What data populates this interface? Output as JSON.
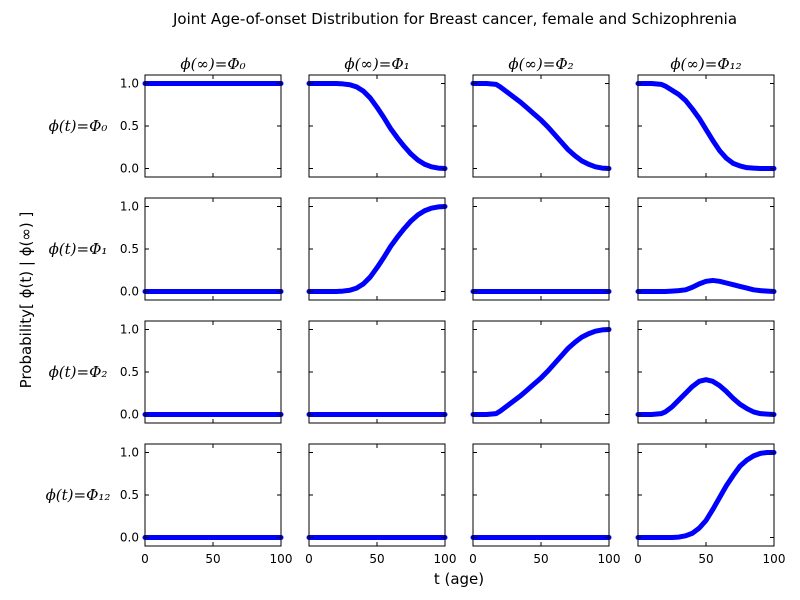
{
  "chart_data": {
    "type": "line",
    "title": "Joint Age-of-onset Distribution for Breast cancer, female and Schizophrenia",
    "xlabel": "t (age)",
    "ylabel": "Probability[ ϕ(t) | ϕ(∞) ]",
    "col_labels": [
      "ϕ(∞)=Φ₀",
      "ϕ(∞)=Φ₁",
      "ϕ(∞)=Φ₂",
      "ϕ(∞)=Φ₁₂"
    ],
    "row_labels": [
      "ϕ(t)=Φ₀",
      "ϕ(t)=Φ₁",
      "ϕ(t)=Φ₂",
      "ϕ(t)=Φ₁₂"
    ],
    "xlim": [
      0,
      100
    ],
    "ylim": [
      -0.1,
      1.1
    ],
    "xticks": [
      0,
      50,
      100
    ],
    "yticks": [
      0.0,
      0.5,
      1.0
    ],
    "xtick_labels": [
      "0",
      "50",
      "100"
    ],
    "ytick_labels": [
      "0.0",
      "0.5",
      "1.0"
    ],
    "line_color": "#0000ff",
    "x": [
      0,
      10,
      17,
      20,
      25,
      30,
      35,
      40,
      45,
      50,
      55,
      60,
      65,
      70,
      75,
      80,
      85,
      90,
      95,
      100
    ],
    "panels": [
      [
        {
          "y": [
            1,
            1,
            1,
            1,
            1,
            1,
            1,
            1,
            1,
            1,
            1,
            1,
            1,
            1,
            1,
            1,
            1,
            1,
            1,
            1
          ]
        },
        {
          "y": [
            1,
            1,
            1,
            1,
            0.995,
            0.985,
            0.96,
            0.91,
            0.83,
            0.72,
            0.6,
            0.47,
            0.36,
            0.26,
            0.17,
            0.1,
            0.05,
            0.02,
            0.005,
            0
          ]
        },
        {
          "y": [
            1,
            1,
            0.99,
            0.96,
            0.9,
            0.84,
            0.78,
            0.71,
            0.64,
            0.57,
            0.49,
            0.4,
            0.31,
            0.22,
            0.15,
            0.09,
            0.05,
            0.02,
            0.005,
            0
          ]
        },
        {
          "y": [
            1,
            1,
            0.99,
            0.97,
            0.92,
            0.87,
            0.8,
            0.7,
            0.59,
            0.46,
            0.33,
            0.21,
            0.12,
            0.06,
            0.03,
            0.01,
            0.005,
            0,
            0,
            0
          ]
        }
      ],
      [
        {
          "y": [
            0,
            0,
            0,
            0,
            0,
            0,
            0,
            0,
            0,
            0,
            0,
            0,
            0,
            0,
            0,
            0,
            0,
            0,
            0,
            0
          ]
        },
        {
          "y": [
            0,
            0,
            0,
            0,
            0.005,
            0.015,
            0.04,
            0.09,
            0.17,
            0.28,
            0.4,
            0.53,
            0.64,
            0.74,
            0.83,
            0.9,
            0.95,
            0.98,
            0.995,
            1
          ]
        },
        {
          "y": [
            0,
            0,
            0,
            0,
            0,
            0,
            0,
            0,
            0,
            0,
            0,
            0,
            0,
            0,
            0,
            0,
            0,
            0,
            0,
            0
          ]
        },
        {
          "y": [
            0,
            0,
            0,
            0,
            0.005,
            0.01,
            0.02,
            0.05,
            0.09,
            0.12,
            0.13,
            0.12,
            0.1,
            0.08,
            0.06,
            0.04,
            0.02,
            0.01,
            0.005,
            0
          ]
        }
      ],
      [
        {
          "y": [
            0,
            0,
            0,
            0,
            0,
            0,
            0,
            0,
            0,
            0,
            0,
            0,
            0,
            0,
            0,
            0,
            0,
            0,
            0,
            0
          ]
        },
        {
          "y": [
            0,
            0,
            0,
            0,
            0,
            0,
            0,
            0,
            0,
            0,
            0,
            0,
            0,
            0,
            0,
            0,
            0,
            0,
            0,
            0
          ]
        },
        {
          "y": [
            0,
            0,
            0.01,
            0.04,
            0.1,
            0.16,
            0.22,
            0.29,
            0.36,
            0.43,
            0.51,
            0.6,
            0.69,
            0.78,
            0.85,
            0.91,
            0.95,
            0.98,
            0.995,
            1
          ]
        },
        {
          "y": [
            0,
            0,
            0.01,
            0.03,
            0.09,
            0.17,
            0.25,
            0.33,
            0.39,
            0.41,
            0.39,
            0.34,
            0.27,
            0.19,
            0.12,
            0.07,
            0.03,
            0.01,
            0.005,
            0
          ]
        }
      ],
      [
        {
          "y": [
            0,
            0,
            0,
            0,
            0,
            0,
            0,
            0,
            0,
            0,
            0,
            0,
            0,
            0,
            0,
            0,
            0,
            0,
            0,
            0
          ]
        },
        {
          "y": [
            0,
            0,
            0,
            0,
            0,
            0,
            0,
            0,
            0,
            0,
            0,
            0,
            0,
            0,
            0,
            0,
            0,
            0,
            0,
            0
          ]
        },
        {
          "y": [
            0,
            0,
            0,
            0,
            0,
            0,
            0,
            0,
            0,
            0,
            0,
            0,
            0,
            0,
            0,
            0,
            0,
            0,
            0,
            0
          ]
        },
        {
          "y": [
            0,
            0,
            0,
            0,
            0,
            0.005,
            0.02,
            0.05,
            0.11,
            0.2,
            0.33,
            0.47,
            0.61,
            0.73,
            0.84,
            0.91,
            0.96,
            0.99,
            1,
            1
          ]
        }
      ]
    ]
  }
}
